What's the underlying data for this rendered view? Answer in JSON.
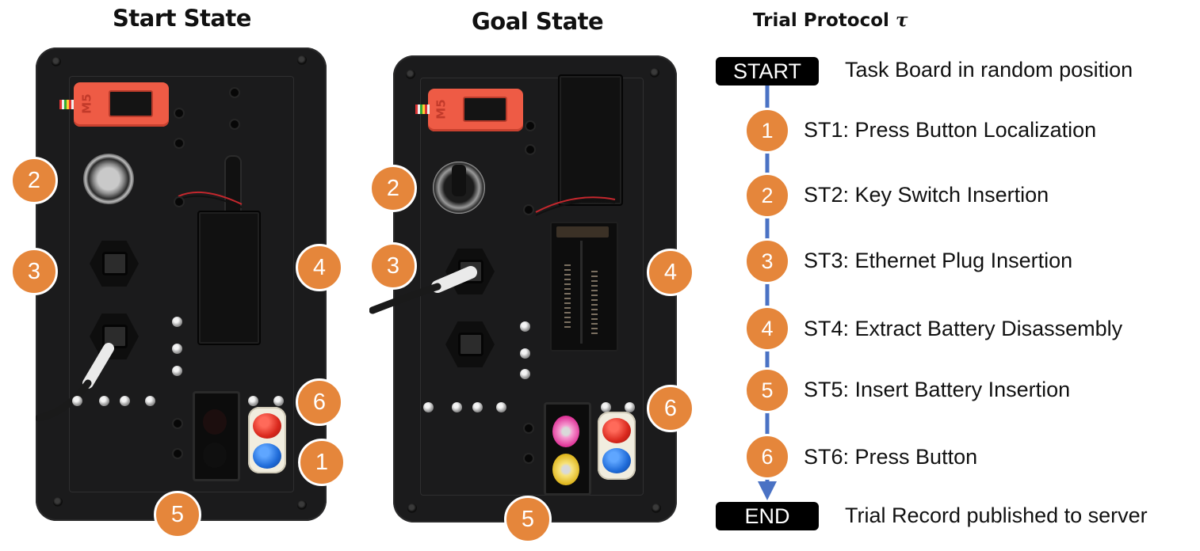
{
  "headings": {
    "start_state": "Start State",
    "goal_state": "Goal State",
    "protocol": "Trial Protocol",
    "protocol_symbol": "τ"
  },
  "device_logo": "M5",
  "start_labels": [
    "2",
    "3",
    "4",
    "6",
    "1",
    "5"
  ],
  "goal_labels": [
    "2",
    "3",
    "4",
    "6",
    "5"
  ],
  "protocol": {
    "start_label": "START",
    "start_text": "Task Board in random position",
    "steps": [
      {
        "num": "1",
        "text": "ST1: Press Button Localization"
      },
      {
        "num": "2",
        "text": "ST2: Key Switch Insertion"
      },
      {
        "num": "3",
        "text": "ST3: Ethernet Plug Insertion"
      },
      {
        "num": "4",
        "text": "ST4: Extract Battery Disassembly"
      },
      {
        "num": "5",
        "text": "ST5: Insert Battery Insertion"
      },
      {
        "num": "6",
        "text": "ST6: Press Button"
      }
    ],
    "end_label": "END",
    "end_text": "Trial Record published to server"
  },
  "colors": {
    "badge": "#e5863b",
    "connector": "#4a72c4",
    "board": "#1b1b1c",
    "m5_device": "#ee5b45"
  }
}
